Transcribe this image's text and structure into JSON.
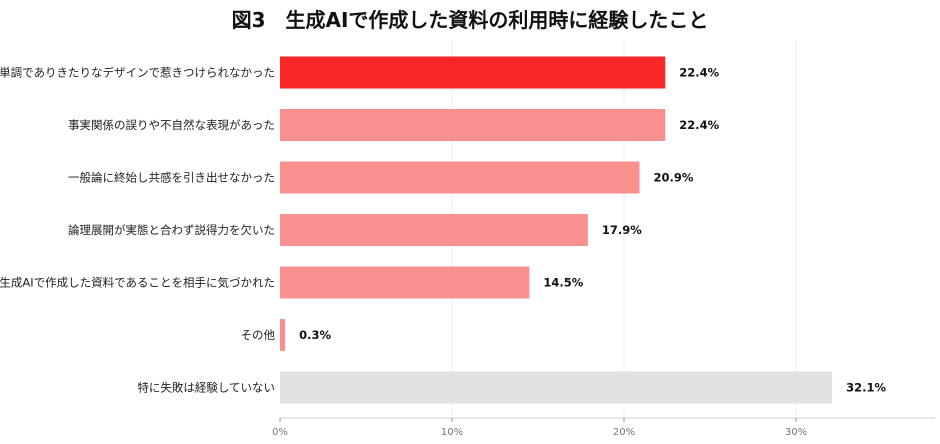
{
  "chart_data": {
    "type": "bar",
    "orientation": "horizontal",
    "title": "図3　生成AIで作成した資料の利用時に経験したこと",
    "categories": [
      "単調でありきたりなデザインで惹きつけられなかった",
      "事実関係の誤りや不自然な表現があった",
      "一般論に終始し共感を引き出せなかった",
      "論理展開が実態と合わず説得力を欠いた",
      "生成AIで作成した資料であることを相手に気づかれた",
      "その他",
      "特に失敗は経験していない"
    ],
    "values": [
      22.4,
      22.4,
      20.9,
      17.9,
      14.5,
      0.3,
      32.1
    ],
    "value_labels": [
      "22.4%",
      "22.4%",
      "20.9%",
      "17.9%",
      "14.5%",
      "0.3%",
      "32.1%"
    ],
    "bar_colors": [
      "#f92626",
      "#f99090",
      "#f99090",
      "#f99090",
      "#f99090",
      "#f99090",
      "#e2e2e2"
    ],
    "xlim": [
      0,
      38
    ],
    "x_ticks": [
      0,
      10,
      20,
      30
    ],
    "x_tick_labels": [
      "0%",
      "10%",
      "20%",
      "30%"
    ],
    "grid": true
  }
}
